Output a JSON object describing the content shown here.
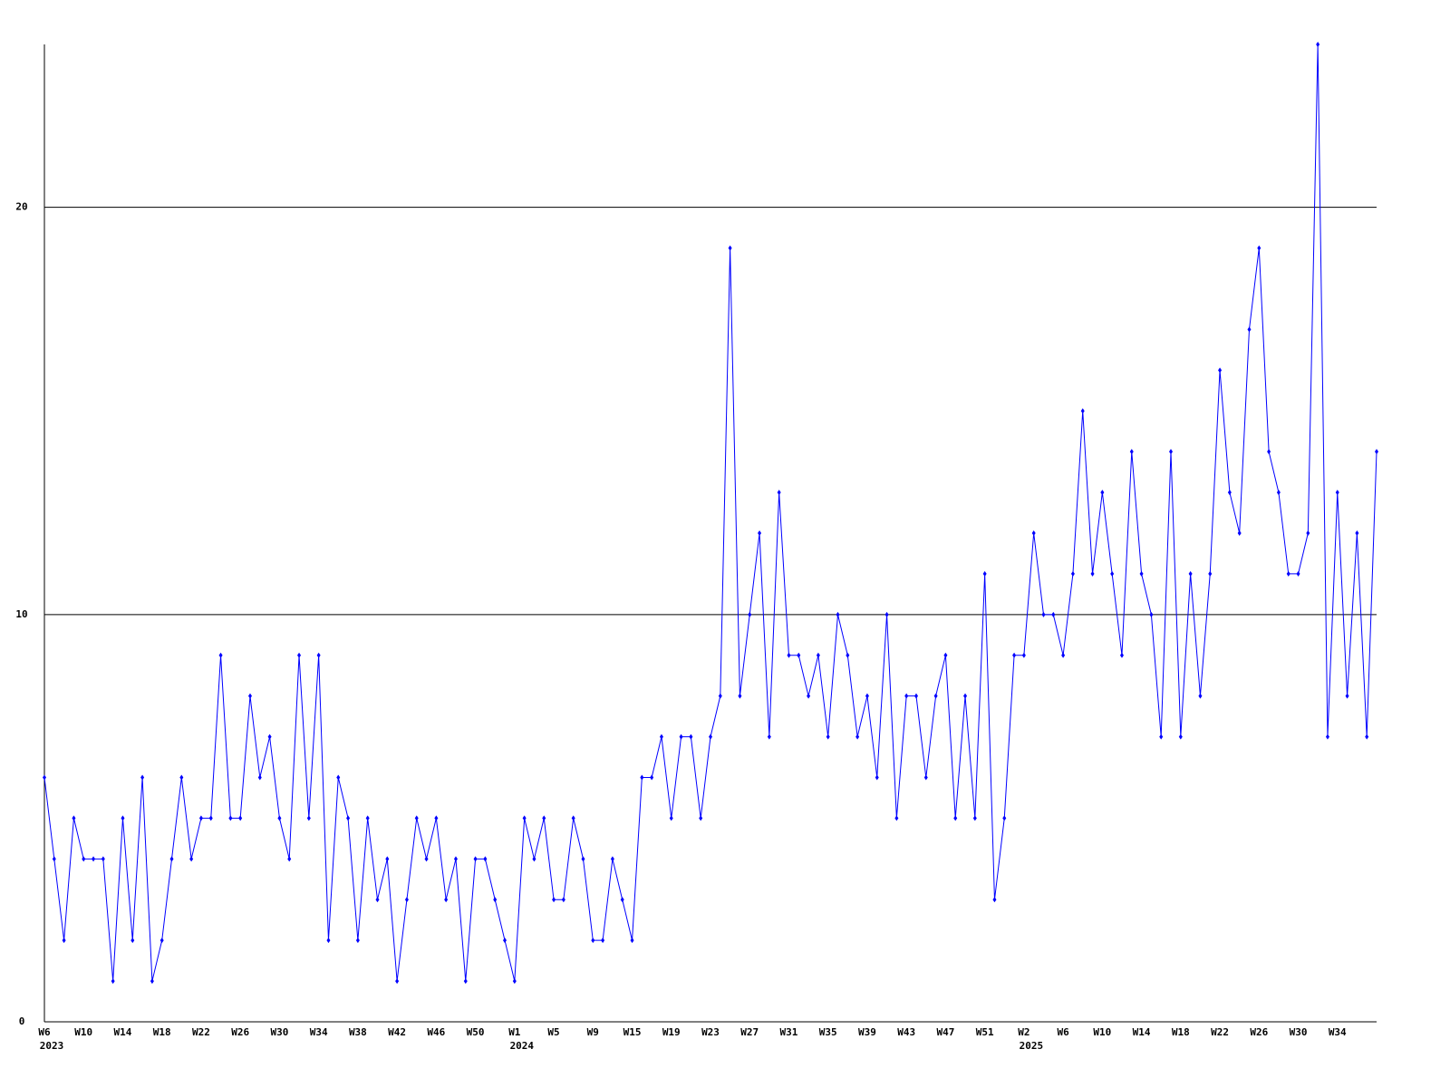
{
  "chart_data": {
    "type": "line",
    "color": "#0000ff",
    "grid": true,
    "ylim": [
      0,
      24
    ],
    "yticks": [
      0,
      10,
      20
    ],
    "categories": [
      {
        "label": "W6",
        "year": "2023"
      },
      null,
      null,
      null,
      "W10",
      null,
      null,
      null,
      "W14",
      null,
      null,
      null,
      "W18",
      null,
      null,
      null,
      "W22",
      null,
      null,
      null,
      "W26",
      null,
      null,
      null,
      "W30",
      null,
      null,
      null,
      "W34",
      null,
      null,
      null,
      "W38",
      null,
      null,
      null,
      "W42",
      null,
      null,
      null,
      "W46",
      null,
      null,
      null,
      "W50",
      null,
      null,
      null,
      {
        "label": "W1",
        "year": "2024"
      },
      null,
      null,
      null,
      "W5",
      null,
      null,
      null,
      "W9",
      null,
      null,
      null,
      "W15",
      null,
      null,
      null,
      "W19",
      null,
      null,
      null,
      "W23",
      null,
      null,
      null,
      "W27",
      null,
      null,
      null,
      "W31",
      null,
      null,
      null,
      "W35",
      null,
      null,
      null,
      "W39",
      null,
      null,
      null,
      "W43",
      null,
      null,
      null,
      "W47",
      null,
      null,
      null,
      "W51",
      null,
      null,
      null,
      {
        "label": "W2",
        "year": "2025"
      },
      null,
      null,
      null,
      "W6",
      null,
      null,
      null,
      "W10",
      null,
      null,
      null,
      "W14",
      null,
      null,
      null,
      "W18",
      null,
      null,
      null,
      "W22",
      null,
      null,
      null,
      "W26",
      null,
      null,
      null,
      "W30",
      null,
      null,
      null,
      "W34",
      null,
      null,
      null,
      null
    ],
    "values": [
      6,
      4,
      2,
      5,
      4,
      4,
      4,
      1,
      5,
      2,
      6,
      1,
      2,
      4,
      6,
      4,
      5,
      5,
      9,
      5,
      5,
      8,
      6,
      7,
      5,
      4,
      9,
      5,
      9,
      2,
      6,
      5,
      2,
      5,
      3,
      4,
      1,
      3,
      5,
      4,
      5,
      3,
      4,
      1,
      4,
      4,
      3,
      2,
      1,
      5,
      4,
      5,
      3,
      3,
      5,
      4,
      2,
      2,
      4,
      3,
      2,
      6,
      6,
      7,
      5,
      7,
      7,
      5,
      7,
      8,
      19,
      8,
      10,
      12,
      7,
      13,
      9,
      9,
      8,
      9,
      7,
      10,
      9,
      7,
      8,
      6,
      10,
      5,
      8,
      8,
      6,
      8,
      9,
      5,
      8,
      5,
      11,
      3,
      5,
      9,
      9,
      12,
      10,
      10,
      9,
      11,
      15,
      11,
      13,
      11,
      9,
      14,
      11,
      10,
      7,
      14,
      7,
      11,
      8,
      11,
      16,
      13,
      12,
      17,
      19,
      14,
      13,
      11,
      11,
      12,
      24,
      7,
      13,
      8,
      12,
      7,
      14
    ]
  }
}
